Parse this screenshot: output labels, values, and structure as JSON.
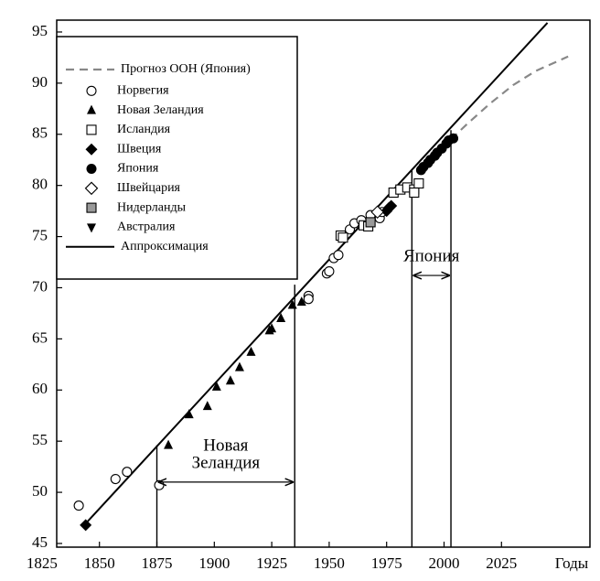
{
  "chart_data": {
    "type": "scatter",
    "xlabel": "Годы",
    "xlim": [
      1831.4,
      2063.5
    ],
    "ylim": [
      44.64,
      96.16
    ],
    "xticks": [
      1825,
      1850,
      1875,
      1900,
      1925,
      1950,
      1975,
      2000,
      2025
    ],
    "yticks": [
      45,
      50,
      55,
      60,
      65,
      70,
      75,
      80,
      85,
      90,
      95
    ],
    "series": [
      {
        "name": "Прогноз ООН (Япония)",
        "marker": "dashed",
        "color": "#888888",
        "x": [
          2003,
          2010,
          2020,
          2030,
          2040,
          2050,
          2054
        ],
        "values": [
          84.5,
          86.0,
          88.0,
          89.8,
          91.2,
          92.2,
          92.6
        ]
      },
      {
        "name": "Норвегия",
        "marker": "circle-open",
        "color": "#000000",
        "x": [
          1841,
          1857,
          1862,
          1876,
          1941,
          1941,
          1949,
          1950,
          1952,
          1954,
          1959,
          1961,
          1964,
          1968,
          1972,
          1973
        ],
        "values": [
          48.7,
          51.3,
          52.0,
          50.7,
          69.2,
          68.9,
          71.4,
          71.6,
          72.9,
          73.2,
          75.7,
          76.3,
          76.6,
          77.1,
          76.8,
          77.4
        ]
      },
      {
        "name": "Новая Зеландия",
        "marker": "triangle-up",
        "color": "#000000",
        "x": [
          1880,
          1889,
          1897,
          1901,
          1907,
          1911,
          1916,
          1924,
          1925,
          1929,
          1934,
          1938
        ],
        "values": [
          54.6,
          57.6,
          58.4,
          60.3,
          60.9,
          62.2,
          63.7,
          65.8,
          66.0,
          67.0,
          68.3,
          68.6
        ]
      },
      {
        "name": "Исландия",
        "marker": "square-open",
        "color": "#000000",
        "x": [
          1955,
          1956,
          1965,
          1967,
          1978,
          1981,
          1984,
          1987,
          1989,
          1987
        ],
        "values": [
          75.1,
          74.9,
          76.1,
          76.0,
          79.3,
          79.6,
          79.8,
          79.6,
          80.2,
          79.3
        ]
      },
      {
        "name": "Швеция",
        "marker": "diamond",
        "color": "#000000",
        "x": [
          1844,
          1975,
          1976,
          1977
        ],
        "values": [
          46.8,
          77.5,
          77.8,
          78.0
        ]
      },
      {
        "name": "Япония",
        "marker": "circle",
        "color": "#000000",
        "x": [
          1990,
          1991,
          1993,
          1994,
          1996,
          1997,
          1999,
          2001,
          2002,
          2004
        ],
        "values": [
          81.5,
          81.8,
          82.2,
          82.5,
          82.9,
          83.2,
          83.6,
          84.1,
          84.4,
          84.6
        ]
      },
      {
        "name": "Швейцария",
        "marker": "diamond-open",
        "color": "#000000",
        "x": [
          1971
        ],
        "values": [
          77.4
        ]
      },
      {
        "name": "Нидерланды",
        "marker": "square-gray",
        "color": "#999999",
        "x": [
          1968
        ],
        "values": [
          76.4
        ]
      },
      {
        "name": "Австралия",
        "marker": "triangle-down",
        "color": "#000000",
        "x": [],
        "values": []
      },
      {
        "name": "Аппроксимация",
        "marker": "line",
        "color": "#000000",
        "x": [
          1843,
          2045
        ],
        "values": [
          46.7,
          95.9
        ]
      }
    ],
    "vlines": [
      {
        "x": 1875,
        "top": 54.6
      },
      {
        "x": 1935,
        "top": 70.3
      },
      {
        "x": 1986,
        "top": 81.5
      },
      {
        "x": 2003,
        "top": 85.4
      }
    ],
    "annotations": [
      {
        "lines": [
          "Новая",
          "Зеландия"
        ],
        "x": [
          1875,
          1935
        ],
        "y": 51
      },
      {
        "lines": [
          "Япония"
        ],
        "x": [
          1986,
          2003
        ],
        "y": 71.2
      }
    ]
  }
}
